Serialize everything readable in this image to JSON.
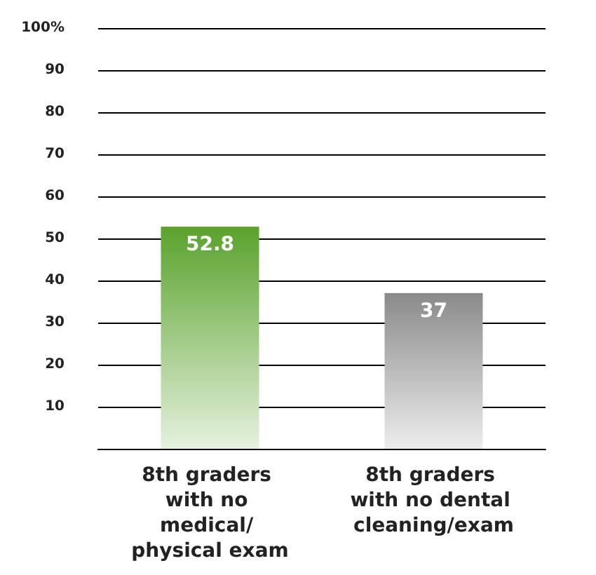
{
  "chart_data": {
    "type": "bar",
    "categories": [
      "8th graders with no medical/ physical exam",
      "8th graders with no dental cleaning/exam"
    ],
    "values": [
      52.8,
      37
    ],
    "colors": [
      "#5aa22c",
      "#8a8a8a"
    ],
    "ylim": [
      0,
      100
    ],
    "yticks": [
      10,
      20,
      30,
      40,
      50,
      60,
      70,
      80,
      90,
      {
        "value": 100,
        "label": "100%"
      }
    ],
    "grid": "y",
    "data_labels": true
  }
}
